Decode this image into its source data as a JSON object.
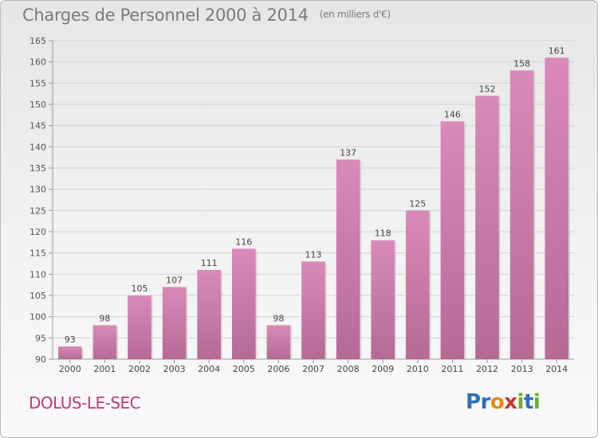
{
  "chart_data": {
    "type": "bar",
    "title": "Charges de Personnel 2000 à 2014",
    "subtitle": "(en milliers d'€)",
    "categories": [
      "2000",
      "2001",
      "2002",
      "2003",
      "2004",
      "2005",
      "2006",
      "2007",
      "2008",
      "2009",
      "2010",
      "2011",
      "2012",
      "2013",
      "2014"
    ],
    "values": [
      93,
      98,
      105,
      107,
      111,
      116,
      98,
      113,
      137,
      118,
      125,
      146,
      152,
      158,
      161
    ],
    "ylim": [
      90,
      165
    ],
    "yticks": [
      90,
      95,
      100,
      105,
      110,
      115,
      120,
      125,
      130,
      135,
      140,
      145,
      150,
      155,
      160,
      165
    ],
    "grid": true,
    "bar_color": "#d98ab8",
    "bar_color_dark": "#b56a96"
  },
  "footer": {
    "place": "DOLUS-LE-SEC",
    "logo_letters": [
      "P",
      "r",
      "o",
      "x",
      "i",
      "t",
      "i"
    ],
    "logo_colors": [
      "#2e6fbf",
      "#2e6fbf",
      "#e88a18",
      "#c0392b",
      "#6cae2a",
      "#2e6fbf",
      "#6cae2a"
    ]
  }
}
